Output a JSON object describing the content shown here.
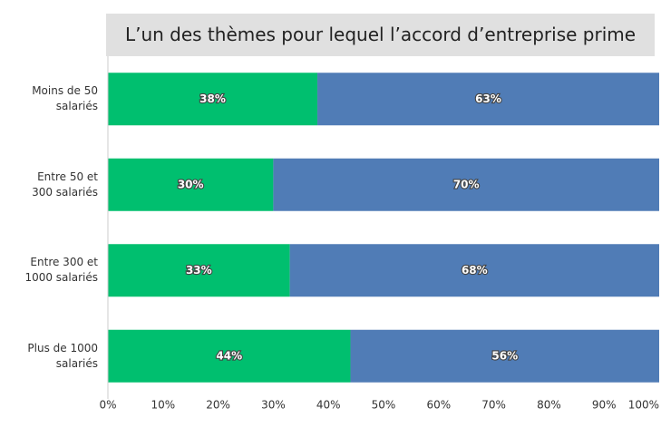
{
  "chart_data": {
    "type": "stacked_barh",
    "title": "L’un des thèmes pour lequel l’accord d’entreprise prime",
    "categories": [
      "Moins de 50\nsalariés",
      "Entre 50 et\n300 salariés",
      "Entre 300 et\n1000 salariés",
      "Plus de 1000\nsalariés"
    ],
    "series": [
      {
        "color": "#00bf6f",
        "values": [
          38,
          30,
          33,
          44
        ],
        "value_labels": [
          "38%",
          "30%",
          "33%",
          "44%"
        ]
      },
      {
        "color": "#507cb6",
        "values": [
          63,
          70,
          68,
          56
        ],
        "value_labels": [
          "63%",
          "70%",
          "68%",
          "56%"
        ]
      }
    ],
    "xlim": [
      0,
      100
    ],
    "xticks": [
      {
        "value": 0,
        "label": "0%"
      },
      {
        "value": 10,
        "label": "10%"
      },
      {
        "value": 20,
        "label": "20%"
      },
      {
        "value": 30,
        "label": "30%"
      },
      {
        "value": 40,
        "label": "40%"
      },
      {
        "value": 50,
        "label": "50%"
      },
      {
        "value": 60,
        "label": "60%"
      },
      {
        "value": 70,
        "label": "70%"
      },
      {
        "value": 80,
        "label": "80%"
      },
      {
        "value": 90,
        "label": "90%"
      },
      {
        "value": 100,
        "label": "100%"
      }
    ]
  }
}
